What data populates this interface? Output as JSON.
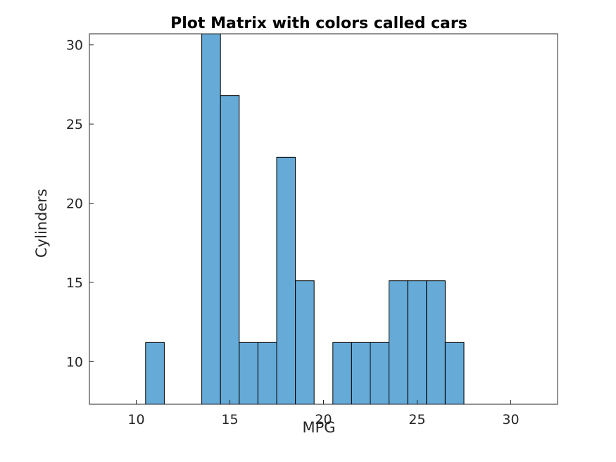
{
  "chart_data": {
    "type": "bar",
    "title": "Plot Matrix with colors called cars",
    "xlabel": "MPG",
    "ylabel": "Cylinders",
    "xlim": [
      7.5,
      32.5
    ],
    "ylim": [
      7.3,
      30.7
    ],
    "bin_width": 1,
    "bars": [
      {
        "x0": 10.5,
        "x1": 11.5,
        "value": 11.2
      },
      {
        "x0": 13.5,
        "x1": 14.5,
        "value": 30.7
      },
      {
        "x0": 14.5,
        "x1": 15.5,
        "value": 26.8
      },
      {
        "x0": 15.5,
        "x1": 16.5,
        "value": 11.2
      },
      {
        "x0": 16.5,
        "x1": 17.5,
        "value": 11.2
      },
      {
        "x0": 17.5,
        "x1": 18.5,
        "value": 22.9
      },
      {
        "x0": 18.5,
        "x1": 19.5,
        "value": 15.1
      },
      {
        "x0": 20.5,
        "x1": 21.5,
        "value": 11.2
      },
      {
        "x0": 21.5,
        "x1": 22.5,
        "value": 11.2
      },
      {
        "x0": 22.5,
        "x1": 23.5,
        "value": 11.2
      },
      {
        "x0": 23.5,
        "x1": 24.5,
        "value": 15.1
      },
      {
        "x0": 24.5,
        "x1": 25.5,
        "value": 15.1
      },
      {
        "x0": 25.5,
        "x1": 26.5,
        "value": 15.1
      },
      {
        "x0": 26.5,
        "x1": 27.5,
        "value": 11.2
      }
    ],
    "xticks": [
      10,
      15,
      20,
      25,
      30
    ],
    "yticks": [
      10,
      15,
      20,
      25,
      30
    ],
    "bar_color": "#66aad7",
    "edge_color": "#000000",
    "grid": false
  }
}
